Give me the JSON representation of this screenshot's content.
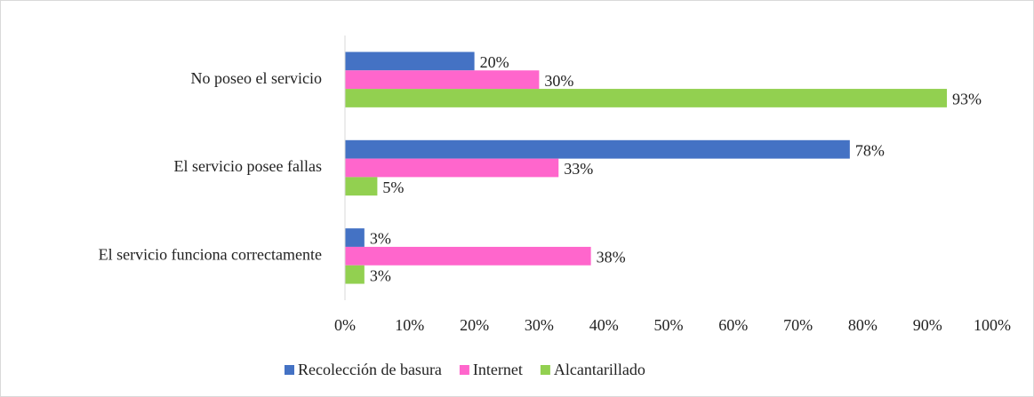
{
  "chart_data": {
    "type": "hbar",
    "categories": [
      "No poseo el servicio",
      "El servicio posee fallas",
      "El servicio funciona correctamente"
    ],
    "series": [
      {
        "name": "Recolección de basura",
        "color": "#4472c4",
        "values": [
          20,
          78,
          3
        ],
        "value_labels": [
          "20%",
          "78%",
          "3%"
        ]
      },
      {
        "name": "Internet",
        "color": "#ff66cc",
        "values": [
          30,
          33,
          38
        ],
        "value_labels": [
          "30%",
          "33%",
          "38%"
        ]
      },
      {
        "name": "Alcantarillado",
        "color": "#92d050",
        "values": [
          93,
          5,
          3
        ],
        "value_labels": [
          "93%",
          "5%",
          "3%"
        ]
      }
    ],
    "xlim": [
      0,
      100
    ],
    "xticks": [
      {
        "value": 0,
        "label": "0%"
      },
      {
        "value": 10,
        "label": "10%"
      },
      {
        "value": 20,
        "label": "20%"
      },
      {
        "value": 30,
        "label": "30%"
      },
      {
        "value": 40,
        "label": "40%"
      },
      {
        "value": 50,
        "label": "50%"
      },
      {
        "value": 60,
        "label": "60%"
      },
      {
        "value": 70,
        "label": "70%"
      },
      {
        "value": 80,
        "label": "80%"
      },
      {
        "value": 90,
        "label": "90%"
      },
      {
        "value": 100,
        "label": "100%"
      }
    ],
    "grid": false,
    "legend": "bottom"
  }
}
